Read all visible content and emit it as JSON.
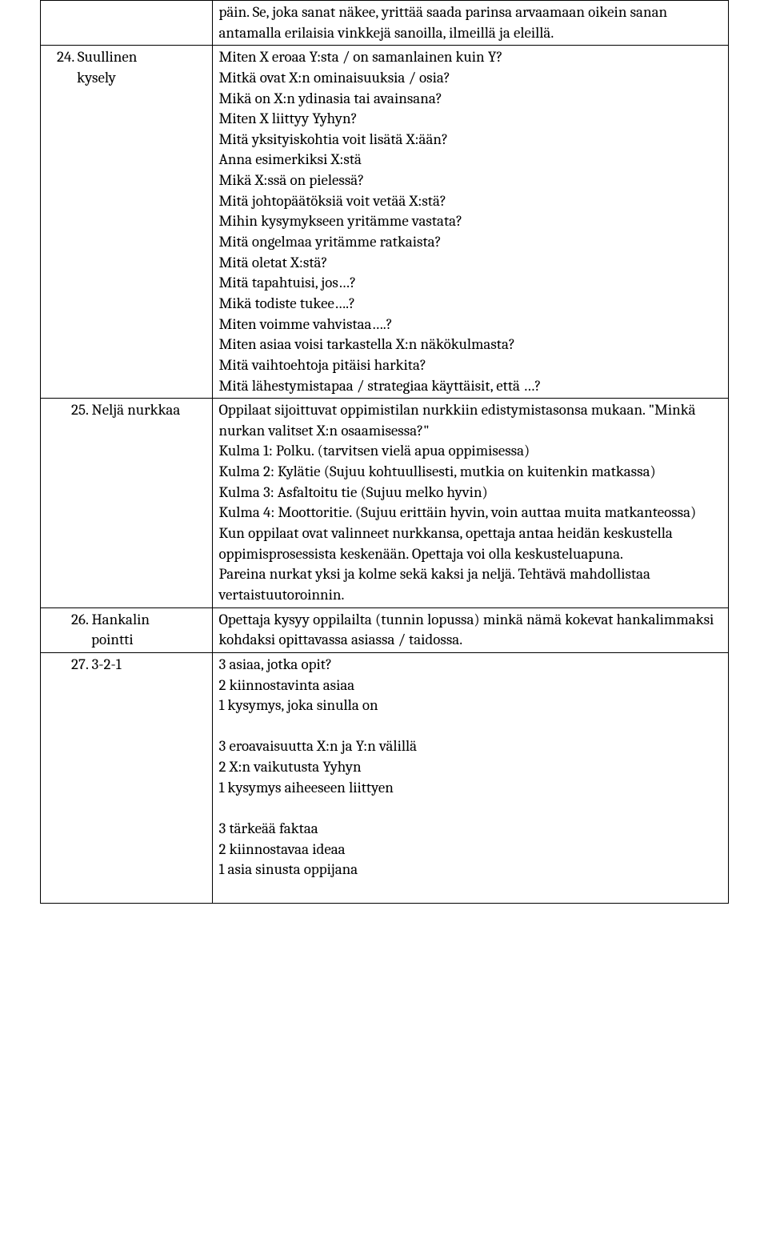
{
  "rows": [
    {
      "left": "",
      "right": [
        "päin. Se, joka sanat näkee, yrittää saada parinsa arvaamaan oikein sanan antamalla erilaisia vinkkejä sanoilla, ilmeillä ja eleillä."
      ]
    },
    {
      "left": "24. Suullinen kysely",
      "right": [
        "Miten X eroaa Y:sta / on samanlainen kuin Y?",
        "Mitkä ovat X:n ominaisuuksia / osia?",
        "Mikä on X:n ydinasia tai avainsana?",
        "Miten X liittyy Yyhyn?",
        "Mitä yksityiskohtia voit lisätä X:ään?",
        "Anna esimerkiksi X:stä",
        "Mikä X:ssä on pielessä?",
        "Mitä johtopäätöksiä voit vetää X:stä?",
        "Mihin kysymykseen yritämme vastata?",
        "Mitä ongelmaa yritämme ratkaista?",
        "Mitä oletat X:stä?",
        "Mitä tapahtuisi, jos…?",
        "Mikä todiste tukee….?",
        "Miten voimme vahvistaa….?",
        "Miten asiaa voisi tarkastella X:n näkökulmasta?",
        "Mitä vaihtoehtoja pitäisi harkita?",
        "Mitä lähestymistapaa / strategiaa käyttäisit, että …?"
      ]
    },
    {
      "left": "25. Neljä nurkkaa",
      "right": [
        "Oppilaat sijoittuvat oppimistilan nurkkiin edistymistasonsa mukaan. \"Minkä nurkan valitset X:n osaamisessa?\"",
        "Kulma 1: Polku. (tarvitsen vielä apua oppimisessa)",
        "Kulma 2: Kylätie (Sujuu kohtuullisesti, mutkia on kuitenkin matkassa)",
        "Kulma 3: Asfaltoitu tie (Sujuu melko hyvin)",
        "Kulma 4: Moottoritie. (Sujuu erittäin hyvin, voin auttaa muita matkanteossa)",
        "Kun oppilaat ovat valinneet nurkkansa, opettaja antaa heidän keskustella oppimisprosessista keskenään. Opettaja voi olla keskusteluapuna.",
        "Pareina nurkat yksi ja kolme sekä kaksi ja neljä. Tehtävä mahdollistaa vertaistuutoroinnin."
      ]
    },
    {
      "left": "26. Hankalin pointti",
      "right": [
        "Opettaja kysyy oppilailta (tunnin lopussa) minkä nämä kokevat hankalimmaksi kohdaksi opittavassa asiassa / taidossa."
      ]
    },
    {
      "left": "27. 3-2-1",
      "right": [
        "3 asiaa, jotka opit?",
        "2 kiinnostavinta asiaa",
        "1 kysymys, joka sinulla on",
        "",
        "3 eroavaisuutta X:n ja Y:n välillä",
        "2 X:n vaikutusta Yyhyn",
        "1 kysymys aiheeseen liittyen",
        "",
        "3 tärkeää faktaa",
        "2 kiinnostavaa ideaa",
        "1 asia sinusta oppijana",
        ""
      ]
    }
  ]
}
